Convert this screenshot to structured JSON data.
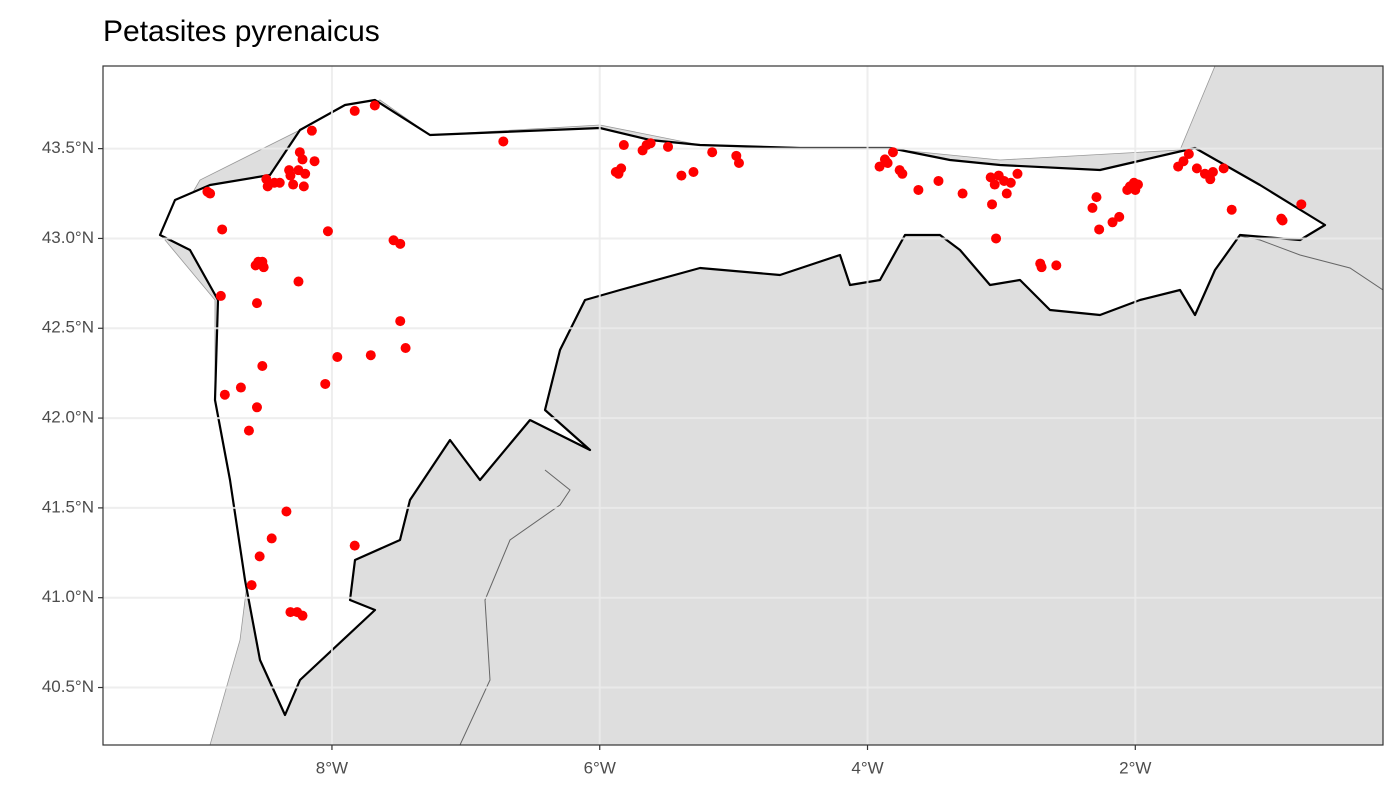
{
  "chart_data": {
    "type": "scatter",
    "title": "Petasites pyrenaicus",
    "color": "#ff0000",
    "grid": true,
    "xlim": [
      -9.71,
      -0.15
    ],
    "ylim": [
      40.18,
      43.96
    ],
    "xticks": [
      {
        "value": -8,
        "label": "8°W"
      },
      {
        "value": -6,
        "label": "6°W"
      },
      {
        "value": -4,
        "label": "4°W"
      },
      {
        "value": -2,
        "label": "2°W"
      }
    ],
    "yticks": [
      {
        "value": 40.5,
        "label": "40.5°N"
      },
      {
        "value": 41.0,
        "label": "41.0°N"
      },
      {
        "value": 41.5,
        "label": "41.5°N"
      },
      {
        "value": 42.0,
        "label": "42.0°N"
      },
      {
        "value": 42.5,
        "label": "42.5°N"
      },
      {
        "value": 43.0,
        "label": "43.0°N"
      },
      {
        "value": 43.5,
        "label": "43.5°N"
      }
    ],
    "x": [
      -8.93,
      -8.91,
      -8.82,
      -8.83,
      -8.56,
      -8.57,
      -8.52,
      -8.51,
      -8.55,
      -8.25,
      -8.49,
      -8.48,
      -8.39,
      -8.31,
      -8.29,
      -8.21,
      -8.32,
      -8.24,
      -8.22,
      -8.15,
      -8.13,
      -8.2,
      -8.43,
      -8.25,
      -7.83,
      -7.68,
      -8.03,
      -7.54,
      -7.49,
      -7.49,
      -7.45,
      -7.71,
      -7.96,
      -8.05,
      -8.52,
      -8.68,
      -8.8,
      -8.56,
      -8.62,
      -8.34,
      -8.45,
      -8.54,
      -8.6,
      -8.31,
      -8.26,
      -8.22,
      -7.83,
      -6.72,
      -5.88,
      -5.86,
      -5.82,
      -5.84,
      -5.68,
      -5.65,
      -5.62,
      -5.49,
      -5.39,
      -5.3,
      -5.16,
      -4.98,
      -4.96,
      -3.91,
      -3.87,
      -3.85,
      -3.81,
      -3.76,
      -3.74,
      -3.62,
      -3.47,
      -3.29,
      -3.08,
      -3.05,
      -3.02,
      -2.98,
      -2.96,
      -2.93,
      -2.88,
      -3.07,
      -3.04,
      -2.71,
      -2.7,
      -2.59,
      -2.32,
      -2.29,
      -2.27,
      -2.17,
      -2.12,
      -2.06,
      -2.04,
      -2.01,
      -2.0,
      -1.98,
      -1.68,
      -1.64,
      -1.6,
      -1.54,
      -1.48,
      -1.44,
      -1.42,
      -1.34,
      -1.28,
      -0.91,
      -0.9,
      -0.76
    ],
    "values": [
      43.26,
      43.25,
      43.05,
      42.68,
      42.64,
      42.85,
      42.87,
      42.84,
      42.87,
      42.76,
      43.33,
      43.29,
      43.31,
      43.35,
      43.3,
      43.29,
      43.38,
      43.48,
      43.44,
      43.6,
      43.43,
      43.36,
      43.31,
      43.38,
      43.71,
      43.74,
      43.04,
      42.99,
      42.97,
      42.54,
      42.39,
      42.35,
      42.34,
      42.19,
      42.29,
      42.17,
      42.13,
      42.06,
      41.93,
      41.48,
      41.33,
      41.23,
      41.07,
      40.92,
      40.92,
      40.9,
      41.29,
      43.54,
      43.37,
      43.36,
      43.52,
      43.39,
      43.49,
      43.52,
      43.53,
      43.51,
      43.35,
      43.37,
      43.48,
      43.46,
      43.42,
      43.4,
      43.44,
      43.42,
      43.48,
      43.38,
      43.36,
      43.27,
      43.32,
      43.25,
      43.34,
      43.3,
      43.35,
      43.32,
      43.25,
      43.31,
      43.36,
      43.19,
      43.0,
      42.86,
      42.84,
      42.85,
      43.17,
      43.23,
      43.05,
      43.09,
      43.12,
      43.27,
      43.29,
      43.31,
      43.27,
      43.3,
      43.4,
      43.43,
      43.47,
      43.39,
      43.36,
      43.33,
      43.37,
      43.39,
      43.16,
      43.11,
      43.1,
      43.19
    ]
  }
}
